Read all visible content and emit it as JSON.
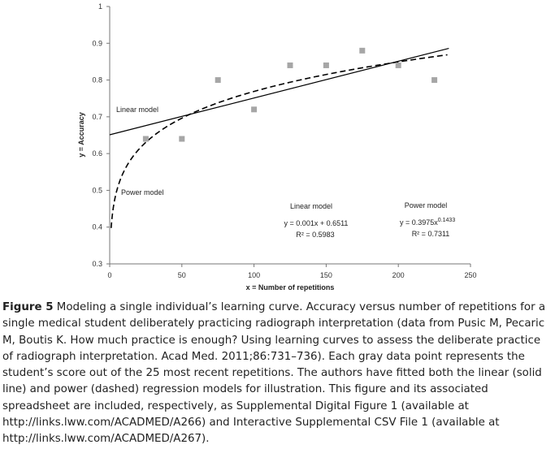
{
  "chart_data": {
    "type": "scatter",
    "title": "",
    "xlabel": "x = Number of repetitions",
    "ylabel": "y = Accuracy",
    "xlim": [
      0,
      250
    ],
    "ylim": [
      0.3,
      1
    ],
    "xticks": [
      "0",
      "50",
      "100",
      "150",
      "200",
      "250"
    ],
    "yticks": [
      "0.3",
      "0.4",
      "0.5",
      "0.6",
      "0.7",
      "0.8",
      "0.9",
      "1"
    ],
    "grid": false,
    "points": {
      "x": [
        25,
        50,
        75,
        100,
        125,
        150,
        175,
        200,
        225
      ],
      "y": [
        0.64,
        0.64,
        0.8,
        0.72,
        0.84,
        0.84,
        0.88,
        0.84,
        0.8
      ],
      "color": "#a6a6a6"
    },
    "linear_model": {
      "label": "Linear model",
      "slope": 0.001,
      "intercept": 0.6511,
      "equation_title": "Linear model",
      "equation": "y = 0.001x + 0.6511",
      "r2": "R² = 0.5983"
    },
    "power_model": {
      "label": "Power model",
      "coefficient": 0.3975,
      "exponent": 0.1433,
      "equation_title": "Power model",
      "equation_base": "y = 0.3975x",
      "equation_exp": "0.1433",
      "r2": "R² = 0.7311"
    }
  },
  "caption": {
    "label": "Figure 5",
    "text": " Modeling a single individual’s learning curve. Accuracy versus number of repetitions for a single medical student deliberately practicing radiograph interpretation (data from Pusic M, Pecaric M, Boutis K. How much practice is enough? Using learning curves to assess the deliberate practice of radiograph interpretation. Acad Med. 2011;86:731–736). Each gray data point represents the student’s score out of the 25 most recent repetitions. The authors have fitted both the linear (solid line) and power (dashed) regression models for illustration. This figure and its associated spreadsheet are included, respectively, as Supplemental Digital Figure 1 (available at http://links.lww.com/ACADMED/A266) and Interactive Supplemental CSV File 1 (available at http://links.lww.com/ACADMED/A267)."
  }
}
